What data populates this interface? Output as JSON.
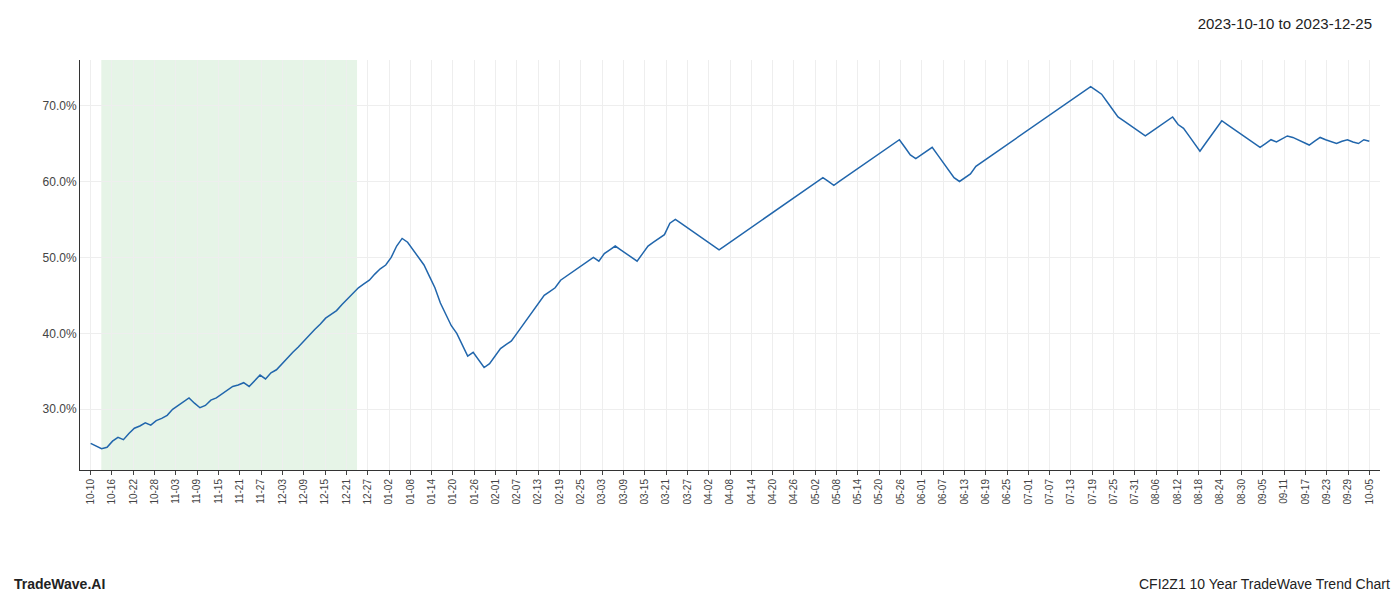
{
  "chart_data": {
    "type": "line",
    "title": "2023-10-10 to 2023-12-25",
    "annotations": [
      "TradeWave.AI",
      "CFI2Z1 10 Year TradeWave Trend Chart"
    ],
    "color": "#2166ac",
    "grid": true,
    "shaded_range": {
      "start": "10-16",
      "end": "12-21",
      "color": "#c8e6c9"
    },
    "xlim": [
      -0.5,
      60.5
    ],
    "xticks": [
      {
        "value": 0,
        "label": "10-10"
      },
      {
        "value": 1,
        "label": "10-16"
      },
      {
        "value": 2,
        "label": "10-22"
      },
      {
        "value": 3,
        "label": "10-28"
      },
      {
        "value": 4,
        "label": "11-03"
      },
      {
        "value": 5,
        "label": "11-09"
      },
      {
        "value": 6,
        "label": "11-15"
      },
      {
        "value": 7,
        "label": "11-21"
      },
      {
        "value": 8,
        "label": "11-27"
      },
      {
        "value": 9,
        "label": "12-03"
      },
      {
        "value": 10,
        "label": "12-09"
      },
      {
        "value": 11,
        "label": "12-15"
      },
      {
        "value": 12,
        "label": "12-21"
      },
      {
        "value": 13,
        "label": "12-27"
      },
      {
        "value": 14,
        "label": "01-02"
      },
      {
        "value": 15,
        "label": "01-08"
      },
      {
        "value": 16,
        "label": "01-14"
      },
      {
        "value": 17,
        "label": "01-20"
      },
      {
        "value": 18,
        "label": "01-26"
      },
      {
        "value": 19,
        "label": "02-01"
      },
      {
        "value": 20,
        "label": "02-07"
      },
      {
        "value": 21,
        "label": "02-13"
      },
      {
        "value": 22,
        "label": "02-19"
      },
      {
        "value": 23,
        "label": "02-25"
      },
      {
        "value": 24,
        "label": "03-03"
      },
      {
        "value": 25,
        "label": "03-09"
      },
      {
        "value": 26,
        "label": "03-15"
      },
      {
        "value": 27,
        "label": "03-21"
      },
      {
        "value": 28,
        "label": "03-27"
      },
      {
        "value": 29,
        "label": "04-02"
      },
      {
        "value": 30,
        "label": "04-08"
      },
      {
        "value": 31,
        "label": "04-14"
      },
      {
        "value": 32,
        "label": "04-20"
      },
      {
        "value": 33,
        "label": "04-26"
      },
      {
        "value": 34,
        "label": "05-02"
      },
      {
        "value": 35,
        "label": "05-08"
      },
      {
        "value": 36,
        "label": "05-14"
      },
      {
        "value": 37,
        "label": "05-20"
      },
      {
        "value": 38,
        "label": "05-26"
      },
      {
        "value": 39,
        "label": "06-01"
      },
      {
        "value": 40,
        "label": "06-07"
      },
      {
        "value": 41,
        "label": "06-13"
      },
      {
        "value": 42,
        "label": "06-19"
      },
      {
        "value": 43,
        "label": "06-25"
      },
      {
        "value": 44,
        "label": "07-01"
      },
      {
        "value": 45,
        "label": "07-07"
      },
      {
        "value": 46,
        "label": "07-13"
      },
      {
        "value": 47,
        "label": "07-19"
      },
      {
        "value": 48,
        "label": "07-25"
      },
      {
        "value": 49,
        "label": "07-31"
      },
      {
        "value": 50,
        "label": "08-06"
      },
      {
        "value": 51,
        "label": "08-12"
      },
      {
        "value": 52,
        "label": "08-18"
      },
      {
        "value": 53,
        "label": "08-24"
      },
      {
        "value": 54,
        "label": "08-30"
      },
      {
        "value": 55,
        "label": "09-05"
      },
      {
        "value": 56,
        "label": "09-11"
      },
      {
        "value": 57,
        "label": "09-17"
      },
      {
        "value": 58,
        "label": "09-23"
      },
      {
        "value": 59,
        "label": "09-29"
      },
      {
        "value": 60,
        "label": "10-05"
      }
    ],
    "ylim": [
      22.0,
      76.0
    ],
    "yticks": [
      {
        "value": 30.0,
        "label": "30.0%"
      },
      {
        "value": 40.0,
        "label": "40.0%"
      },
      {
        "value": 50.0,
        "label": "50.0%"
      },
      {
        "value": 60.0,
        "label": "60.0%"
      },
      {
        "value": 70.0,
        "label": "70.0%"
      }
    ],
    "values": [
      25.5,
      25.2,
      24.8,
      25.0,
      25.8,
      26.3,
      26.0,
      26.8,
      27.5,
      27.8,
      28.2,
      27.9,
      28.5,
      28.8,
      29.2,
      30.0,
      30.5,
      31.0,
      31.5,
      30.8,
      30.2,
      30.5,
      31.2,
      31.5,
      32.0,
      32.5,
      33.0,
      33.2,
      33.5,
      33.0,
      33.8,
      34.5,
      34.0,
      34.8,
      35.2,
      36.0,
      36.8,
      37.5,
      38.2,
      39.0,
      39.8,
      40.5,
      41.2,
      42.0,
      42.5,
      43.0,
      43.8,
      44.5,
      45.2,
      46.0,
      46.5,
      47.0,
      47.8,
      48.5,
      49.0,
      50.0,
      51.5,
      52.5,
      52.0,
      51.0,
      50.0,
      49.0,
      47.5,
      46.0,
      44.0,
      42.5,
      41.0,
      40.0,
      38.5,
      37.0,
      37.5,
      36.5,
      35.5,
      36.0,
      37.0,
      38.0,
      38.5,
      39.0,
      40.0,
      41.0,
      42.0,
      43.0,
      44.0,
      45.0,
      45.5,
      46.0,
      47.0,
      47.5,
      48.0,
      48.5,
      49.0,
      49.5,
      50.0,
      49.5,
      50.5,
      51.0,
      51.5,
      51.0,
      50.5,
      50.0,
      49.5,
      50.5,
      51.5,
      52.0,
      52.5,
      53.0,
      54.5,
      55.0,
      54.5,
      54.0,
      53.5,
      53.0,
      52.5,
      52.0,
      51.5,
      51.0,
      51.5,
      52.0,
      52.5,
      53.0,
      53.5,
      54.0,
      54.5,
      55.0,
      55.5,
      56.0,
      56.5,
      57.0,
      57.5,
      58.0,
      58.5,
      59.0,
      59.5,
      60.0,
      60.5,
      60.0,
      59.5,
      60.0,
      60.5,
      61.0,
      61.5,
      62.0,
      62.5,
      63.0,
      63.5,
      64.0,
      64.5,
      65.0,
      65.5,
      64.5,
      63.5,
      63.0,
      63.5,
      64.0,
      64.5,
      63.5,
      62.5,
      61.5,
      60.5,
      60.0,
      60.5,
      61.0,
      62.0,
      62.5,
      63.0,
      63.5,
      64.0,
      64.5,
      65.0,
      65.5,
      66.0,
      66.5,
      67.0,
      67.5,
      68.0,
      68.5,
      69.0,
      69.5,
      70.0,
      70.5,
      71.0,
      71.5,
      72.0,
      72.5,
      72.0,
      71.5,
      70.5,
      69.5,
      68.5,
      68.0,
      67.5,
      67.0,
      66.5,
      66.0,
      66.5,
      67.0,
      67.5,
      68.0,
      68.5,
      67.5,
      67.0,
      66.0,
      65.0,
      64.0,
      65.0,
      66.0,
      67.0,
      68.0,
      67.5,
      67.0,
      66.5,
      66.0,
      65.5,
      65.0,
      64.5,
      65.0,
      65.5,
      65.2,
      65.6,
      66.0,
      65.8,
      65.5,
      65.2,
      64.8,
      65.3,
      65.8,
      65.5,
      65.2,
      65.0,
      65.3,
      65.5,
      65.2,
      65.0,
      65.5,
      65.3
    ]
  }
}
